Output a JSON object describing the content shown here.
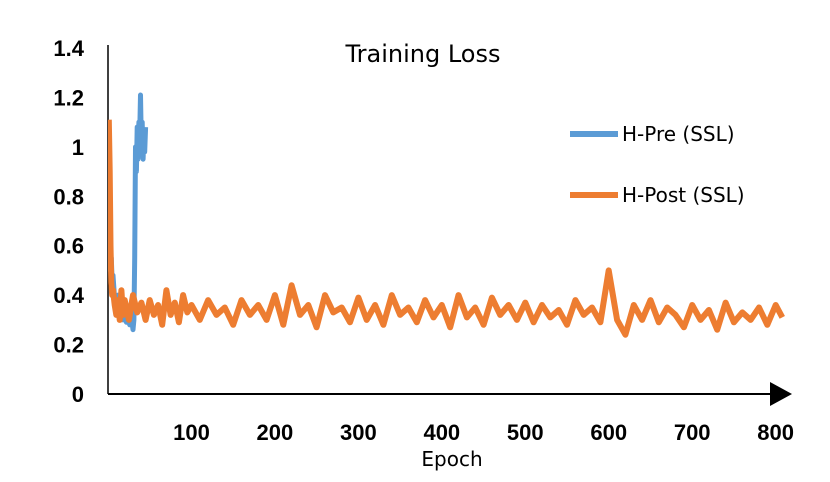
{
  "chart_data": {
    "type": "line",
    "title": "Training Loss",
    "xlabel": "Epoch",
    "ylabel": "",
    "xlim": [
      0,
      810
    ],
    "ylim": [
      0,
      1.4
    ],
    "x_ticks": [
      100,
      200,
      300,
      400,
      500,
      600,
      700,
      800
    ],
    "x_tick_labels": [
      "100",
      "200",
      "300",
      "400",
      "500",
      "600",
      "700",
      "800"
    ],
    "y_ticks": [
      0,
      0.2,
      0.4,
      0.6,
      0.8,
      1,
      1.2,
      1.4
    ],
    "y_tick_labels": [
      "0",
      "0.2",
      "0.4",
      "0.6",
      "0.8",
      "1",
      "1.2",
      "1.4"
    ],
    "grid": false,
    "legend_position": "right",
    "series": [
      {
        "name": "H-Pre (SSL)",
        "color": "#5B9BD5",
        "x": [
          1,
          2,
          3,
          4,
          5,
          6,
          8,
          10,
          12,
          14,
          16,
          18,
          20,
          22,
          24,
          26,
          28,
          30,
          31,
          32,
          33,
          34,
          35,
          36,
          37,
          38,
          39,
          40,
          41,
          42,
          43,
          44,
          45
        ],
        "y": [
          1.1,
          0.65,
          0.5,
          0.55,
          0.45,
          0.48,
          0.38,
          0.35,
          0.4,
          0.33,
          0.36,
          0.3,
          0.34,
          0.29,
          0.32,
          0.28,
          0.31,
          0.26,
          0.3,
          0.55,
          1.0,
          0.9,
          1.08,
          0.95,
          1.1,
          1.05,
          1.21,
          1.0,
          1.1,
          0.95,
          1.05,
          0.98,
          1.08
        ]
      },
      {
        "name": "H-Post (SSL)",
        "color": "#ED7D31",
        "x": [
          1,
          2,
          3,
          4,
          5,
          6,
          8,
          10,
          12,
          14,
          16,
          18,
          20,
          25,
          30,
          35,
          40,
          45,
          50,
          55,
          60,
          65,
          70,
          75,
          80,
          85,
          90,
          95,
          100,
          110,
          120,
          130,
          140,
          150,
          160,
          170,
          180,
          190,
          200,
          210,
          220,
          230,
          240,
          250,
          260,
          270,
          280,
          290,
          300,
          310,
          320,
          330,
          340,
          350,
          360,
          370,
          380,
          390,
          400,
          410,
          420,
          430,
          440,
          450,
          460,
          470,
          480,
          490,
          500,
          510,
          520,
          530,
          540,
          550,
          560,
          570,
          580,
          590,
          600,
          610,
          620,
          630,
          640,
          650,
          660,
          670,
          680,
          690,
          700,
          710,
          720,
          730,
          740,
          750,
          760,
          770,
          780,
          790,
          800,
          808
        ],
        "y": [
          1.11,
          0.9,
          0.6,
          0.45,
          0.4,
          0.42,
          0.36,
          0.32,
          0.38,
          0.3,
          0.42,
          0.32,
          0.38,
          0.3,
          0.4,
          0.33,
          0.37,
          0.3,
          0.38,
          0.32,
          0.36,
          0.28,
          0.42,
          0.32,
          0.37,
          0.29,
          0.4,
          0.33,
          0.36,
          0.3,
          0.38,
          0.32,
          0.35,
          0.28,
          0.38,
          0.32,
          0.36,
          0.3,
          0.4,
          0.28,
          0.44,
          0.32,
          0.36,
          0.27,
          0.4,
          0.33,
          0.35,
          0.29,
          0.39,
          0.3,
          0.36,
          0.28,
          0.4,
          0.32,
          0.35,
          0.29,
          0.38,
          0.31,
          0.36,
          0.27,
          0.4,
          0.31,
          0.35,
          0.28,
          0.39,
          0.32,
          0.36,
          0.3,
          0.37,
          0.29,
          0.36,
          0.31,
          0.34,
          0.28,
          0.38,
          0.32,
          0.35,
          0.29,
          0.5,
          0.3,
          0.24,
          0.36,
          0.3,
          0.38,
          0.29,
          0.35,
          0.32,
          0.27,
          0.36,
          0.3,
          0.34,
          0.26,
          0.37,
          0.29,
          0.33,
          0.3,
          0.35,
          0.28,
          0.36,
          0.31
        ]
      }
    ]
  }
}
